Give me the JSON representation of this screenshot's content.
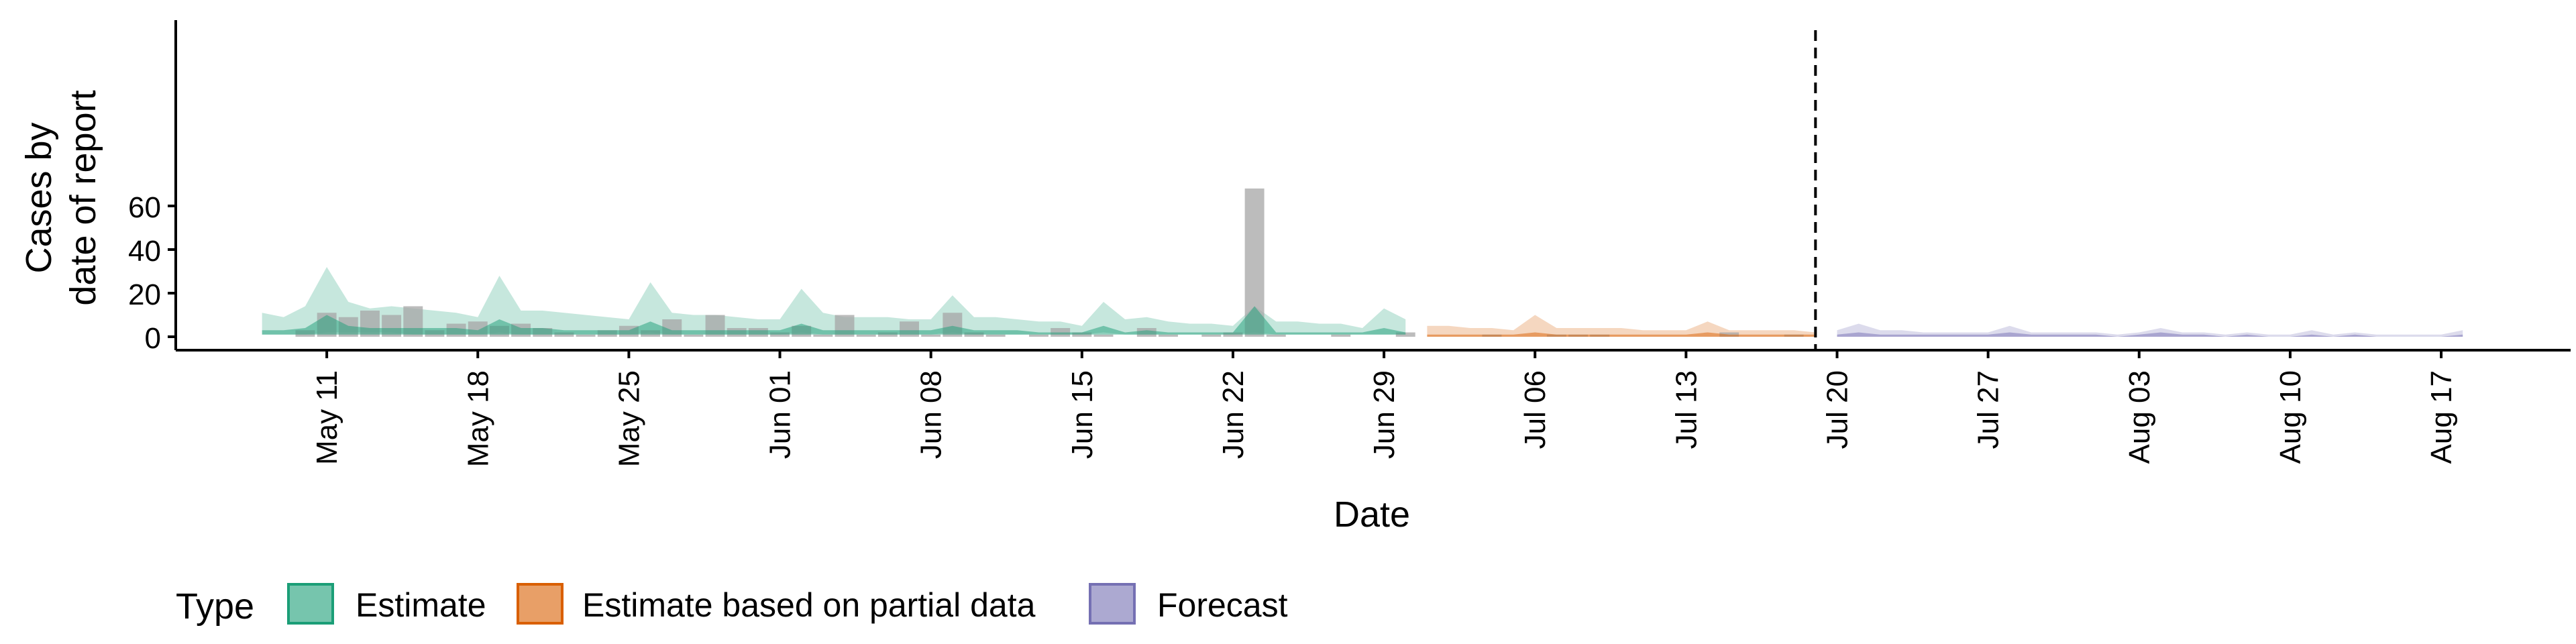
{
  "chart_data": {
    "type": "area",
    "xlabel": "Date",
    "ylabel": [
      "Cases by",
      "date of report"
    ],
    "ylim": [
      0,
      70
    ],
    "yticks": [
      0,
      20,
      40,
      60
    ],
    "x_range": [
      "2020-05-04",
      "2020-08-23"
    ],
    "xticks": [
      "2020-05-11",
      "2020-05-18",
      "2020-05-25",
      "2020-06-01",
      "2020-06-08",
      "2020-06-15",
      "2020-06-22",
      "2020-06-29",
      "2020-07-06",
      "2020-07-13",
      "2020-07-20",
      "2020-07-27",
      "2020-08-03",
      "2020-08-10",
      "2020-08-17"
    ],
    "xtick_labels": [
      "May 11",
      "May 18",
      "May 25",
      "Jun 01",
      "Jun 08",
      "Jun 15",
      "Jun 22",
      "Jun 29",
      "Jul 06",
      "Jul 13",
      "Jul 20",
      "Jul 27",
      "Aug 03",
      "Aug 10",
      "Aug 17"
    ],
    "grid": false,
    "legend_placement": "bottom-left",
    "legend_title": "Type",
    "vline": "2020-07-19",
    "reported_cases": {
      "color": "#a6a6a6",
      "dates": [
        "2020-05-10",
        "2020-05-11",
        "2020-05-12",
        "2020-05-13",
        "2020-05-14",
        "2020-05-15",
        "2020-05-16",
        "2020-05-17",
        "2020-05-18",
        "2020-05-19",
        "2020-05-20",
        "2020-05-21",
        "2020-05-22",
        "2020-05-23",
        "2020-05-24",
        "2020-05-25",
        "2020-05-26",
        "2020-05-27",
        "2020-05-28",
        "2020-05-29",
        "2020-05-30",
        "2020-05-31",
        "2020-06-01",
        "2020-06-02",
        "2020-06-03",
        "2020-06-04",
        "2020-06-05",
        "2020-06-06",
        "2020-06-07",
        "2020-06-08",
        "2020-06-09",
        "2020-06-10",
        "2020-06-11",
        "2020-06-12",
        "2020-06-13",
        "2020-06-14",
        "2020-06-15",
        "2020-06-16",
        "2020-06-17",
        "2020-06-18",
        "2020-06-19",
        "2020-06-20",
        "2020-06-21",
        "2020-06-22",
        "2020-06-23",
        "2020-06-24",
        "2020-06-25",
        "2020-06-26",
        "2020-06-27",
        "2020-06-28",
        "2020-06-29",
        "2020-06-30",
        "2020-07-01",
        "2020-07-02",
        "2020-07-03",
        "2020-07-04",
        "2020-07-05",
        "2020-07-06",
        "2020-07-07",
        "2020-07-08",
        "2020-07-09",
        "2020-07-10",
        "2020-07-11",
        "2020-07-12",
        "2020-07-13",
        "2020-07-14",
        "2020-07-15",
        "2020-07-16",
        "2020-07-17",
        "2020-07-18"
      ],
      "values": [
        3,
        11,
        9,
        12,
        10,
        14,
        3,
        6,
        7,
        5,
        6,
        4,
        2,
        1,
        3,
        5,
        3,
        8,
        1,
        10,
        4,
        4,
        2,
        5,
        1,
        10,
        1,
        2,
        7,
        1,
        11,
        2,
        1,
        0,
        1,
        4,
        2,
        1,
        0,
        4,
        1,
        0,
        1,
        2,
        68,
        1,
        0,
        0,
        1,
        0,
        0,
        2,
        0,
        0,
        0,
        1,
        0,
        0,
        1,
        1,
        1,
        0,
        0,
        0,
        0,
        0,
        2,
        0,
        0,
        1
      ]
    },
    "series": [
      {
        "name": "Estimate",
        "color": "#1b9e77",
        "dates": [
          "2020-05-08",
          "2020-05-09",
          "2020-05-10",
          "2020-05-11",
          "2020-05-12",
          "2020-05-13",
          "2020-05-14",
          "2020-05-15",
          "2020-05-16",
          "2020-05-17",
          "2020-05-18",
          "2020-05-19",
          "2020-05-20",
          "2020-05-21",
          "2020-05-22",
          "2020-05-23",
          "2020-05-24",
          "2020-05-25",
          "2020-05-26",
          "2020-05-27",
          "2020-05-28",
          "2020-05-29",
          "2020-05-30",
          "2020-05-31",
          "2020-06-01",
          "2020-06-02",
          "2020-06-03",
          "2020-06-04",
          "2020-06-05",
          "2020-06-06",
          "2020-06-07",
          "2020-06-08",
          "2020-06-09",
          "2020-06-10",
          "2020-06-11",
          "2020-06-12",
          "2020-06-13",
          "2020-06-14",
          "2020-06-15",
          "2020-06-16",
          "2020-06-17",
          "2020-06-18",
          "2020-06-19",
          "2020-06-20",
          "2020-06-21",
          "2020-06-22",
          "2020-06-23",
          "2020-06-24",
          "2020-06-25",
          "2020-06-26",
          "2020-06-27",
          "2020-06-28",
          "2020-06-29",
          "2020-06-30"
        ],
        "upper_90": [
          11,
          9,
          14,
          32,
          16,
          13,
          14,
          13,
          12,
          11,
          9,
          28,
          12,
          12,
          11,
          10,
          9,
          8,
          25,
          11,
          10,
          10,
          9,
          8,
          8,
          22,
          11,
          9,
          9,
          9,
          8,
          8,
          19,
          9,
          9,
          8,
          7,
          7,
          5,
          16,
          8,
          9,
          7,
          6,
          6,
          5,
          14,
          7,
          7,
          6,
          6,
          4,
          13,
          8
        ],
        "lower_90": [
          1,
          1,
          1,
          2,
          2,
          2,
          2,
          1,
          1,
          1,
          1,
          2,
          1,
          1,
          1,
          1,
          1,
          1,
          2,
          1,
          1,
          1,
          1,
          1,
          1,
          2,
          1,
          1,
          1,
          1,
          1,
          1,
          2,
          1,
          1,
          1,
          1,
          1,
          1,
          2,
          1,
          1,
          1,
          1,
          1,
          1,
          2,
          1,
          1,
          1,
          1,
          1,
          1,
          1
        ],
        "upper_50": [
          3,
          3,
          4,
          10,
          5,
          4,
          4,
          4,
          4,
          4,
          3,
          8,
          4,
          4,
          3,
          3,
          3,
          3,
          7,
          3,
          3,
          3,
          3,
          3,
          3,
          6,
          3,
          3,
          3,
          3,
          3,
          3,
          5,
          3,
          3,
          3,
          2,
          2,
          2,
          5,
          2,
          3,
          2,
          2,
          2,
          2,
          14,
          2,
          2,
          2,
          2,
          2,
          4,
          2
        ],
        "lower_50": [
          1,
          1,
          1,
          1,
          1,
          1,
          1,
          1,
          1,
          1,
          1,
          1,
          1,
          1,
          1,
          1,
          1,
          1,
          1,
          1,
          1,
          1,
          1,
          1,
          1,
          1,
          1,
          1,
          1,
          1,
          1,
          1,
          1,
          1,
          1,
          1,
          1,
          1,
          1,
          1,
          1,
          1,
          1,
          1,
          1,
          1,
          1,
          1,
          1,
          1,
          1,
          1,
          1,
          1
        ]
      },
      {
        "name": "Estimate based on partial data",
        "color": "#d95f02",
        "dates": [
          "2020-07-01",
          "2020-07-02",
          "2020-07-03",
          "2020-07-04",
          "2020-07-05",
          "2020-07-06",
          "2020-07-07",
          "2020-07-08",
          "2020-07-09",
          "2020-07-10",
          "2020-07-11",
          "2020-07-12",
          "2020-07-13",
          "2020-07-14",
          "2020-07-15",
          "2020-07-16",
          "2020-07-17",
          "2020-07-18",
          "2020-07-19"
        ],
        "upper_90": [
          5,
          5,
          4,
          4,
          3,
          10,
          4,
          4,
          4,
          4,
          3,
          3,
          3,
          7,
          3,
          3,
          3,
          3,
          2
        ],
        "lower_90": [
          0,
          0,
          0,
          0,
          0,
          0,
          0,
          0,
          0,
          0,
          0,
          0,
          0,
          0,
          0,
          0,
          0,
          0,
          0
        ],
        "upper_50": [
          1,
          1,
          1,
          1,
          1,
          2,
          1,
          1,
          1,
          1,
          1,
          1,
          1,
          2,
          1,
          1,
          1,
          1,
          1
        ],
        "lower_50": [
          0,
          0,
          0,
          0,
          0,
          0,
          0,
          0,
          0,
          0,
          0,
          0,
          0,
          0,
          0,
          0,
          0,
          0,
          0
        ]
      },
      {
        "name": "Forecast",
        "color": "#7570b3",
        "dates": [
          "2020-07-20",
          "2020-07-21",
          "2020-07-22",
          "2020-07-23",
          "2020-07-24",
          "2020-07-25",
          "2020-07-26",
          "2020-07-27",
          "2020-07-28",
          "2020-07-29",
          "2020-07-30",
          "2020-07-31",
          "2020-08-01",
          "2020-08-02",
          "2020-08-03",
          "2020-08-04",
          "2020-08-05",
          "2020-08-06",
          "2020-08-07",
          "2020-08-08",
          "2020-08-09",
          "2020-08-10",
          "2020-08-11",
          "2020-08-12",
          "2020-08-13",
          "2020-08-14",
          "2020-08-15",
          "2020-08-16",
          "2020-08-17",
          "2020-08-18"
        ],
        "upper_90": [
          3,
          6,
          3,
          3,
          2,
          2,
          2,
          2,
          5,
          2,
          2,
          2,
          2,
          1,
          2,
          4,
          2,
          2,
          1,
          2,
          1,
          1,
          3,
          1,
          2,
          1,
          1,
          1,
          1,
          3
        ],
        "lower_90": [
          0,
          0,
          0,
          0,
          0,
          0,
          0,
          0,
          0,
          0,
          0,
          0,
          0,
          0,
          0,
          0,
          0,
          0,
          0,
          0,
          0,
          0,
          0,
          0,
          0,
          0,
          0,
          0,
          0,
          0
        ],
        "upper_50": [
          1,
          2,
          1,
          1,
          1,
          1,
          1,
          1,
          2,
          1,
          1,
          1,
          1,
          0,
          1,
          2,
          1,
          1,
          0,
          1,
          0,
          0,
          1,
          0,
          1,
          0,
          0,
          0,
          0,
          1
        ],
        "lower_50": [
          0,
          0,
          0,
          0,
          0,
          0,
          0,
          0,
          0,
          0,
          0,
          0,
          0,
          0,
          0,
          0,
          0,
          0,
          0,
          0,
          0,
          0,
          0,
          0,
          0,
          0,
          0,
          0,
          0,
          0
        ]
      }
    ]
  }
}
